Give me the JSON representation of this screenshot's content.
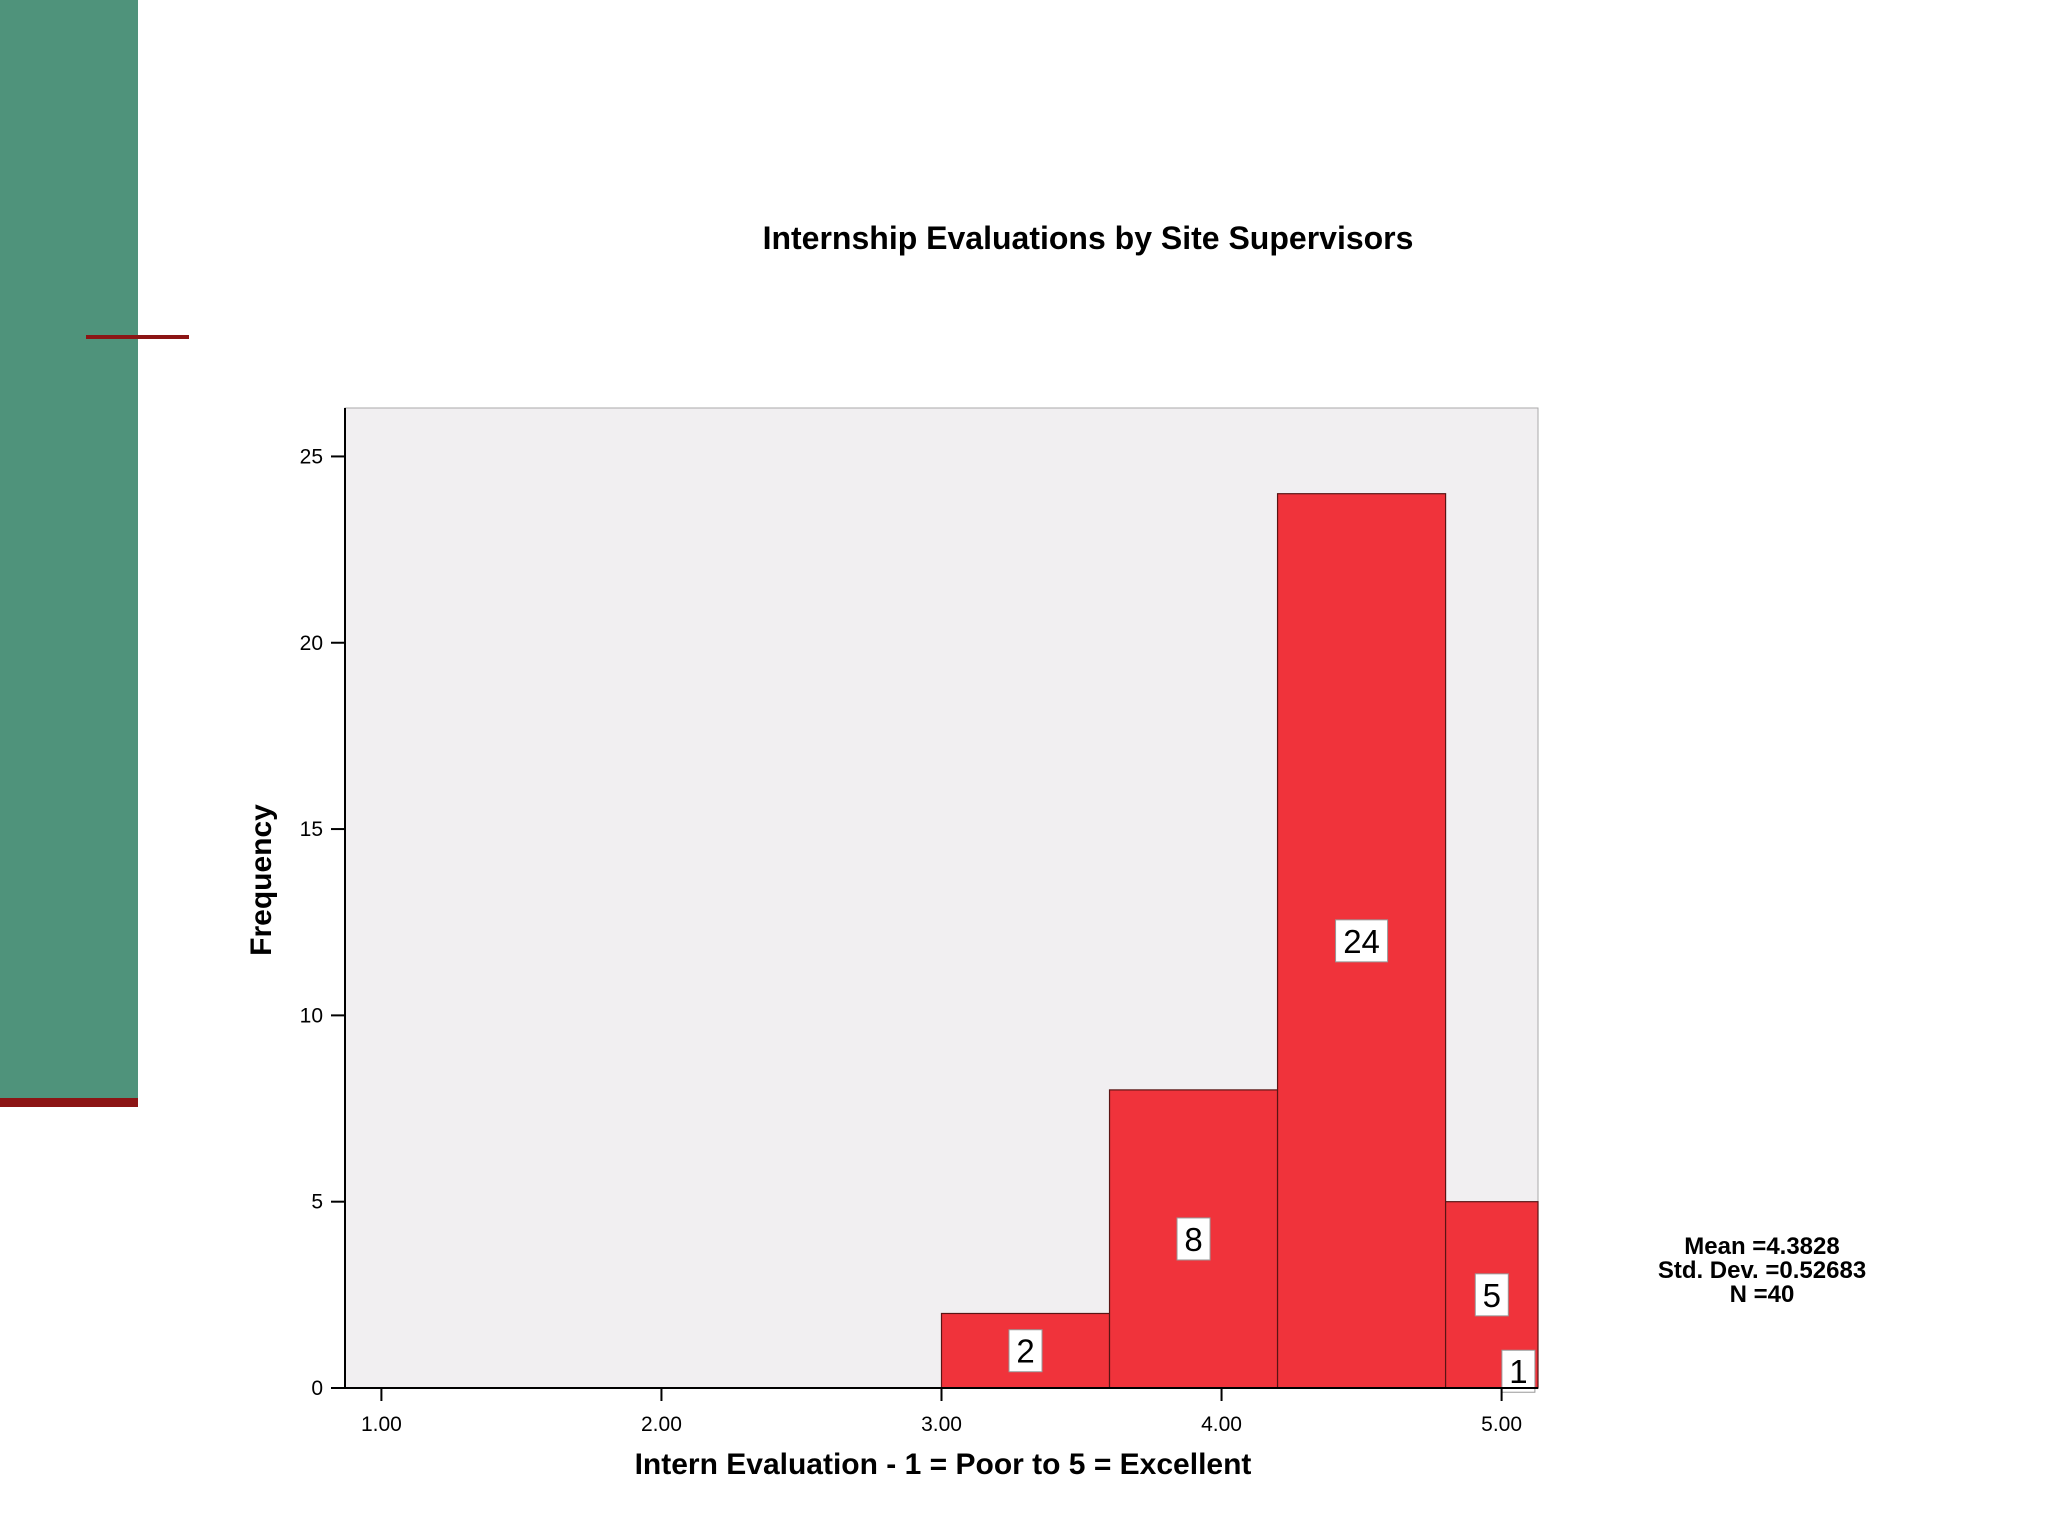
{
  "chart_data": {
    "type": "bar",
    "subtype": "histogram",
    "title": "Internship Evaluations by Site Supervisors",
    "xlabel": "Intern Evaluation - 1 = Poor to 5 = Excellent",
    "ylabel": "Frequency",
    "x_ticks": [
      "1.00",
      "2.00",
      "3.00",
      "4.00",
      "5.00"
    ],
    "y_ticks": [
      "0",
      "5",
      "10",
      "15",
      "20",
      "25"
    ],
    "xlim": [
      0.87,
      5.13
    ],
    "ylim": [
      0,
      26.3
    ],
    "bins": [
      {
        "start": 3.0,
        "end": 3.6,
        "count": 2,
        "label": "2"
      },
      {
        "start": 3.6,
        "end": 4.2,
        "count": 8,
        "label": "8"
      },
      {
        "start": 4.2,
        "end": 4.8,
        "count": 24,
        "label": "24"
      },
      {
        "start": 4.8,
        "end": 5.13,
        "count": 5,
        "label": "5"
      }
    ],
    "extra_labels": [
      {
        "x": 5.06,
        "y": 0.45,
        "label": "1"
      }
    ],
    "stats": {
      "mean": "Mean =4.3828",
      "std_dev": "Std. Dev. =0.52683",
      "n": "N =40"
    },
    "grid": false,
    "bar_color": "#f0333b",
    "plot_background": "#f1eff1"
  },
  "colors": {
    "sidebar": "#4f937b",
    "accent": "#8c1515"
  }
}
